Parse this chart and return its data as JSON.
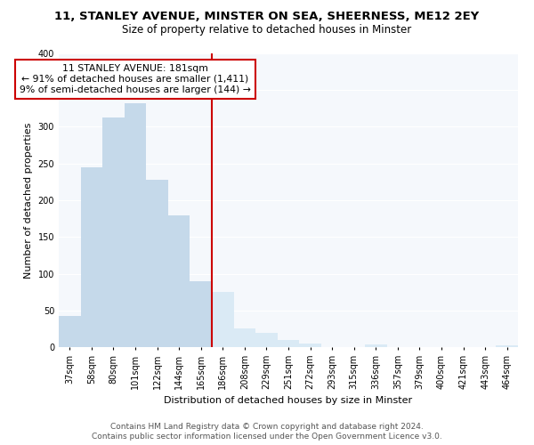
{
  "title_line1": "11, STANLEY AVENUE, MINSTER ON SEA, SHEERNESS, ME12 2EY",
  "title_line2": "Size of property relative to detached houses in Minster",
  "xlabel": "Distribution of detached houses by size in Minster",
  "ylabel": "Number of detached properties",
  "bar_labels": [
    "37sqm",
    "58sqm",
    "80sqm",
    "101sqm",
    "122sqm",
    "144sqm",
    "165sqm",
    "186sqm",
    "208sqm",
    "229sqm",
    "251sqm",
    "272sqm",
    "293sqm",
    "315sqm",
    "336sqm",
    "357sqm",
    "379sqm",
    "400sqm",
    "421sqm",
    "443sqm",
    "464sqm"
  ],
  "bar_values": [
    43,
    245,
    313,
    332,
    228,
    180,
    90,
    75,
    25,
    19,
    10,
    5,
    0,
    0,
    4,
    0,
    0,
    0,
    0,
    0,
    2
  ],
  "bar_color_left": "#c5d9ea",
  "bar_color_right": "#daeaf5",
  "vline_color": "#cc0000",
  "vline_index": 7,
  "annotation_title": "11 STANLEY AVENUE: 181sqm",
  "annotation_line2": "← 91% of detached houses are smaller (1,411)",
  "annotation_line3": "9% of semi-detached houses are larger (144) →",
  "annotation_box_facecolor": "#ffffff",
  "annotation_box_edgecolor": "#cc0000",
  "footnote1": "Contains HM Land Registry data © Crown copyright and database right 2024.",
  "footnote2": "Contains public sector information licensed under the Open Government Licence v3.0.",
  "ylim": [
    0,
    400
  ],
  "background_color": "#ffffff",
  "plot_bg_color": "#f5f8fc",
  "grid_color": "#ffffff",
  "title1_fontsize": 9.5,
  "title2_fontsize": 8.5,
  "ylabel_fontsize": 8,
  "xlabel_fontsize": 8,
  "tick_fontsize": 7,
  "footnote_fontsize": 6.5
}
